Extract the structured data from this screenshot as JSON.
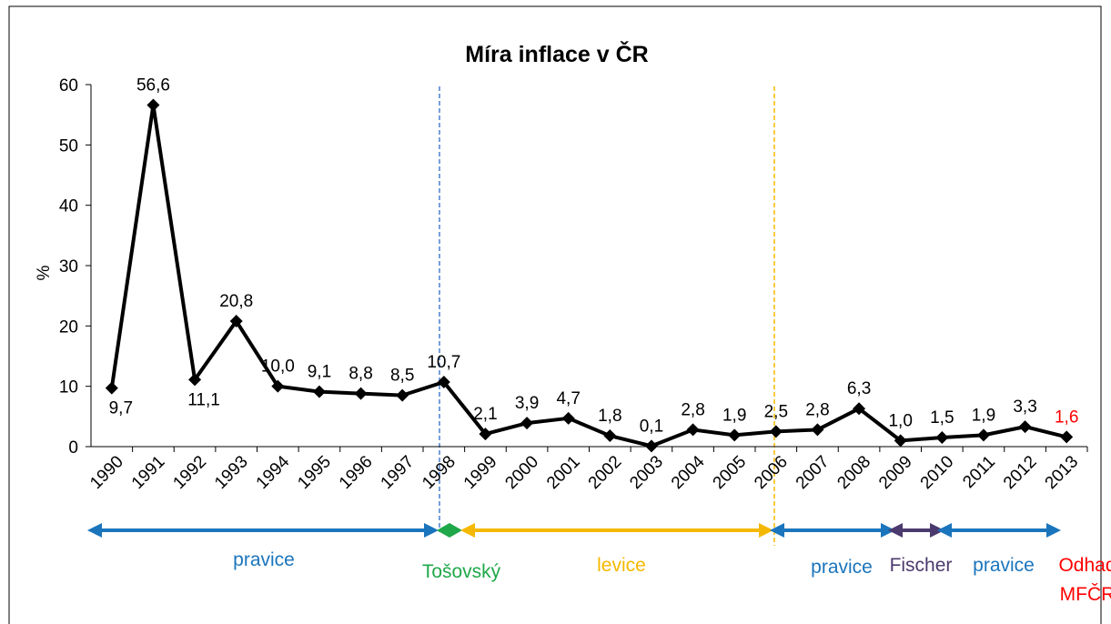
{
  "chart_data": {
    "type": "line",
    "title": "Míra inflace v ČR",
    "y_label": "%",
    "categories": [
      "1990",
      "1991",
      "1992",
      "1993",
      "1994",
      "1995",
      "1996",
      "1997",
      "1998",
      "1999",
      "2000",
      "2001",
      "2002",
      "2003",
      "2004",
      "2005",
      "2006",
      "2007",
      "2008",
      "2009",
      "2010",
      "2011",
      "2012",
      "2013"
    ],
    "series": [
      {
        "color": "#000000",
        "values": [
          9.7,
          56.6,
          11.1,
          20.8,
          10.0,
          9.1,
          8.8,
          8.5,
          10.7,
          2.1,
          3.9,
          4.7,
          1.8,
          0.1,
          2.8,
          1.9,
          2.5,
          2.8,
          6.3,
          1.0,
          1.5,
          1.9,
          3.3,
          1.6
        ],
        "value_labels": [
          "9,7",
          "56,6",
          "11,1",
          "20,8",
          "10,0",
          "9,1",
          "8,8",
          "8,5",
          "10,7",
          "2,1",
          "3,9",
          "4,7",
          "1,8",
          "0,1",
          "2,8",
          "1,9",
          "2,5",
          "2,8",
          "6,3",
          "1,0",
          "1,5",
          "1,9",
          "3,3",
          "1,6"
        ]
      }
    ],
    "ylim": [
      0,
      60
    ],
    "yticks": [
      0,
      10,
      20,
      30,
      40,
      50,
      60
    ],
    "grid": false,
    "annotations": [
      {
        "text": "pravice",
        "color": "#1b75bc"
      },
      {
        "text": "Tošovský",
        "color": "#1fa84a"
      },
      {
        "text": "levice",
        "color": "#f5b800"
      },
      {
        "text": "pravice",
        "color": "#1b75bc"
      },
      {
        "text": "Fischer",
        "color": "#4b3a6e"
      },
      {
        "text": "pravice",
        "color": "#1b75bc"
      },
      {
        "lines": [
          "Odhad",
          "MFČR"
        ],
        "color": "#ff0000"
      }
    ]
  }
}
